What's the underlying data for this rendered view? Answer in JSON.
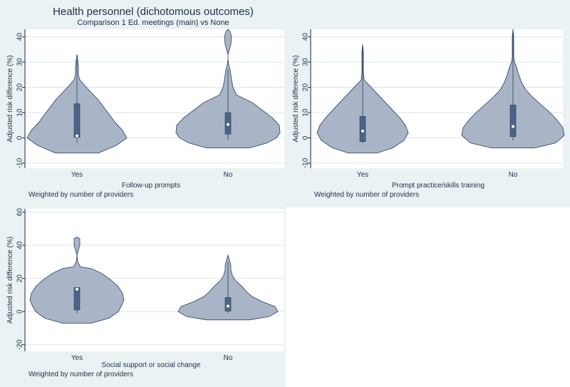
{
  "figure": {
    "title": "Health personnel (dichotomous outcomes)",
    "subtitle": "Comparison 1 Ed. meetings (main) vs None"
  },
  "colors": {
    "background": "#eaf2f3",
    "violin_fill": "#a9b5c7",
    "violin_stroke": "#2a3d5c",
    "box_fill": "#4c6587",
    "text": "#1f2f4b",
    "grid": "#dce6e8"
  },
  "chart_data": [
    {
      "type": "violin",
      "panel": "top-left",
      "xlabel": "Follow-up prompts",
      "ylabel": "Adjusted risk difference (%)",
      "note": "Weighted by number of providers",
      "ylim": [
        -12,
        43
      ],
      "yticks": [
        -10,
        0,
        10,
        20,
        30,
        40
      ],
      "categories": [
        "Yes",
        "No"
      ],
      "series": [
        {
          "name": "Yes",
          "median": 0.8,
          "q1": 0.2,
          "q3": 13.5,
          "whisker_low": -2,
          "whisker_high": 31,
          "density": [
            [
              -6,
              30
            ],
            [
              -3,
              55
            ],
            [
              0,
              70
            ],
            [
              3,
              64
            ],
            [
              6,
              54
            ],
            [
              9,
              46
            ],
            [
              12,
              38
            ],
            [
              15,
              30
            ],
            [
              18,
              20
            ],
            [
              21,
              10
            ],
            [
              23,
              4
            ],
            [
              25,
              2
            ],
            [
              28,
              2
            ],
            [
              31,
              1
            ],
            [
              33,
              0
            ]
          ]
        },
        {
          "name": "No",
          "median": 5.3,
          "q1": 1.5,
          "q3": 10,
          "whisker_low": -1,
          "whisker_high": 27,
          "density": [
            [
              -4,
              30
            ],
            [
              -2,
              55
            ],
            [
              0,
              68
            ],
            [
              2,
              73
            ],
            [
              5,
              72
            ],
            [
              8,
              62
            ],
            [
              11,
              48
            ],
            [
              14,
              34
            ],
            [
              17,
              12
            ],
            [
              20,
              7
            ],
            [
              23,
              5
            ],
            [
              27,
              3
            ],
            [
              29,
              1
            ],
            [
              31,
              0
            ],
            [
              33,
              0
            ],
            [
              35,
              2
            ],
            [
              37,
              4
            ],
            [
              40,
              5
            ],
            [
              42,
              3
            ],
            [
              43,
              0
            ]
          ]
        }
      ]
    },
    {
      "type": "violin",
      "panel": "top-right",
      "xlabel": "Prompt practice/skills training",
      "ylabel": "Adjusted risk difference (%)",
      "note": "Weighted by number of providers",
      "ylim": [
        -12,
        43
      ],
      "yticks": [
        -10,
        0,
        10,
        20,
        30,
        40
      ],
      "categories": [
        "Yes",
        "No"
      ],
      "series": [
        {
          "name": "Yes",
          "median": 2.7,
          "q1": -1.5,
          "q3": 8.5,
          "whisker_low": -2,
          "whisker_high": 36,
          "density": [
            [
              -6,
              20
            ],
            [
              -4,
              42
            ],
            [
              -1,
              58
            ],
            [
              2,
              64
            ],
            [
              5,
              60
            ],
            [
              8,
              52
            ],
            [
              11,
              42
            ],
            [
              14,
              32
            ],
            [
              17,
              22
            ],
            [
              20,
              12
            ],
            [
              22,
              5
            ],
            [
              23,
              2
            ],
            [
              26,
              1
            ],
            [
              30,
              1
            ],
            [
              34,
              1
            ],
            [
              37,
              0
            ]
          ]
        },
        {
          "name": "No",
          "median": 4.5,
          "q1": 0.5,
          "q3": 13,
          "whisker_low": -1,
          "whisker_high": 42,
          "density": [
            [
              -4,
              30
            ],
            [
              -2,
              60
            ],
            [
              1,
              72
            ],
            [
              4,
              70
            ],
            [
              7,
              62
            ],
            [
              10,
              52
            ],
            [
              13,
              40
            ],
            [
              16,
              28
            ],
            [
              19,
              18
            ],
            [
              22,
              12
            ],
            [
              25,
              8
            ],
            [
              28,
              5
            ],
            [
              30,
              2
            ],
            [
              32,
              1
            ],
            [
              36,
              1
            ],
            [
              40,
              1
            ],
            [
              43,
              0
            ]
          ]
        }
      ]
    },
    {
      "type": "violin",
      "panel": "bottom-left",
      "xlabel": "Social support or social change",
      "ylabel": "Adjusted risk difference (%)",
      "note": "Weighted by number of providers",
      "ylim": [
        -24,
        62
      ],
      "yticks": [
        -20,
        0,
        20,
        40,
        60
      ],
      "categories": [
        "Yes",
        "No"
      ],
      "series": [
        {
          "name": "Yes",
          "median": 13.5,
          "q1": 1,
          "q3": 14.5,
          "whisker_low": -1,
          "whisker_high": 14.5,
          "density": [
            [
              -7,
              20
            ],
            [
              -4,
              45
            ],
            [
              0,
              58
            ],
            [
              3,
              62
            ],
            [
              7,
              66
            ],
            [
              11,
              64
            ],
            [
              15,
              58
            ],
            [
              19,
              48
            ],
            [
              23,
              35
            ],
            [
              26,
              20
            ],
            [
              27,
              5
            ],
            [
              30,
              1
            ],
            [
              34,
              0
            ],
            [
              37,
              2
            ],
            [
              40,
              4
            ],
            [
              44,
              4
            ],
            [
              45,
              0
            ]
          ]
        },
        {
          "name": "No",
          "median": 3.3,
          "q1": 0.3,
          "q3": 8.5,
          "whisker_low": -1,
          "whisker_high": 30,
          "density": [
            [
              -5,
              30
            ],
            [
              -3,
              58
            ],
            [
              0,
              70
            ],
            [
              3,
              66
            ],
            [
              6,
              48
            ],
            [
              9,
              34
            ],
            [
              12,
              26
            ],
            [
              15,
              20
            ],
            [
              19,
              10
            ],
            [
              22,
              6
            ],
            [
              25,
              4
            ],
            [
              28,
              4
            ],
            [
              31,
              2
            ],
            [
              34,
              0
            ]
          ]
        }
      ]
    }
  ]
}
